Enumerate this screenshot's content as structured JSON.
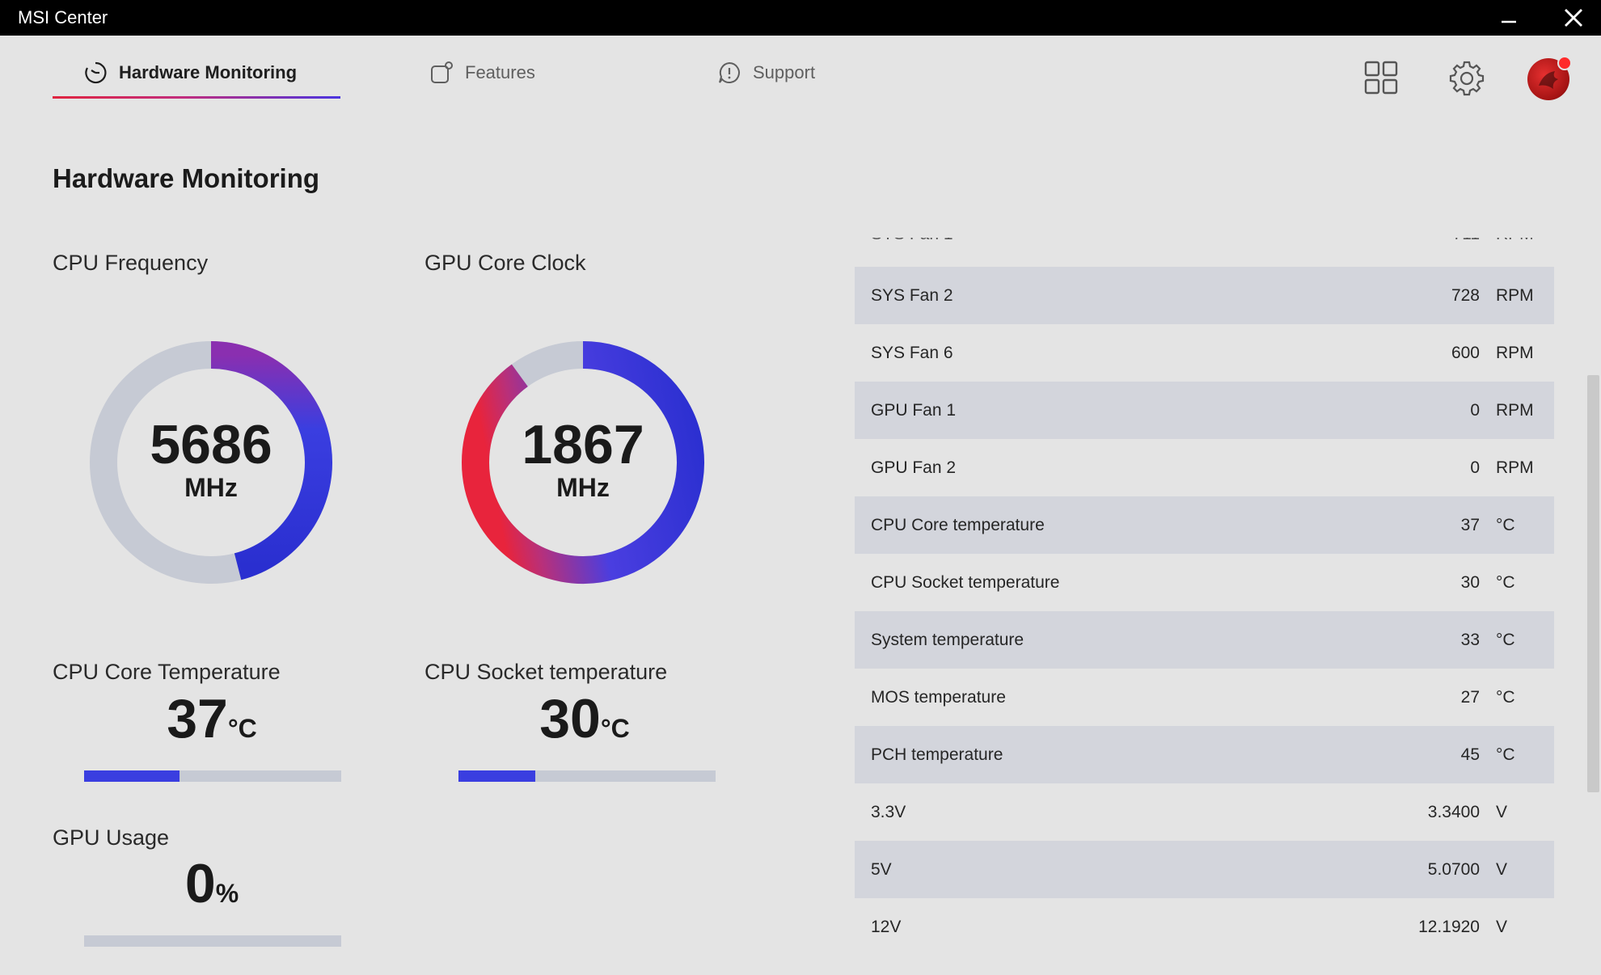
{
  "window": {
    "title": "MSI Center"
  },
  "nav": {
    "tabs": [
      {
        "label": "Hardware Monitoring",
        "icon": "monitor-gauge-icon",
        "active": true
      },
      {
        "label": "Features",
        "icon": "features-icon",
        "active": false
      },
      {
        "label": "Support",
        "icon": "support-icon",
        "active": false
      }
    ]
  },
  "page": {
    "title": "Hardware Monitoring"
  },
  "gauges": [
    {
      "label": "CPU Frequency",
      "value": "5686",
      "unit": "MHz",
      "fraction": 0.46
    },
    {
      "label": "GPU Core Clock",
      "value": "1867",
      "unit": "MHz",
      "fraction": 0.9
    }
  ],
  "metrics": [
    {
      "label": "CPU Core Temperature",
      "value": "37",
      "unit": "°C",
      "fraction": 0.37
    },
    {
      "label": "CPU Socket temperature",
      "value": "30",
      "unit": "°C",
      "fraction": 0.3
    },
    {
      "label": "GPU Usage",
      "value": "0",
      "unit": "%",
      "fraction": 0.0
    }
  ],
  "sensors": [
    {
      "name": "SYS Fan 2",
      "value": "728",
      "unit": "RPM"
    },
    {
      "name": "SYS Fan 6",
      "value": "600",
      "unit": "RPM"
    },
    {
      "name": "GPU Fan 1",
      "value": "0",
      "unit": "RPM"
    },
    {
      "name": "GPU Fan 2",
      "value": "0",
      "unit": "RPM"
    },
    {
      "name": "CPU Core temperature",
      "value": "37",
      "unit": "°C"
    },
    {
      "name": "CPU Socket temperature",
      "value": "30",
      "unit": "°C"
    },
    {
      "name": "System temperature",
      "value": "33",
      "unit": "°C"
    },
    {
      "name": "MOS temperature",
      "value": "27",
      "unit": "°C"
    },
    {
      "name": "PCH temperature",
      "value": "45",
      "unit": "°C"
    },
    {
      "name": "3.3V",
      "value": "3.3400",
      "unit": "V"
    },
    {
      "name": "5V",
      "value": "5.0700",
      "unit": "V"
    },
    {
      "name": "12V",
      "value": "12.1920",
      "unit": "V"
    }
  ],
  "colors": {
    "accent_blue": "#3a3ee0",
    "accent_red": "#e0243f",
    "gauge_track": "#c6cad4"
  }
}
